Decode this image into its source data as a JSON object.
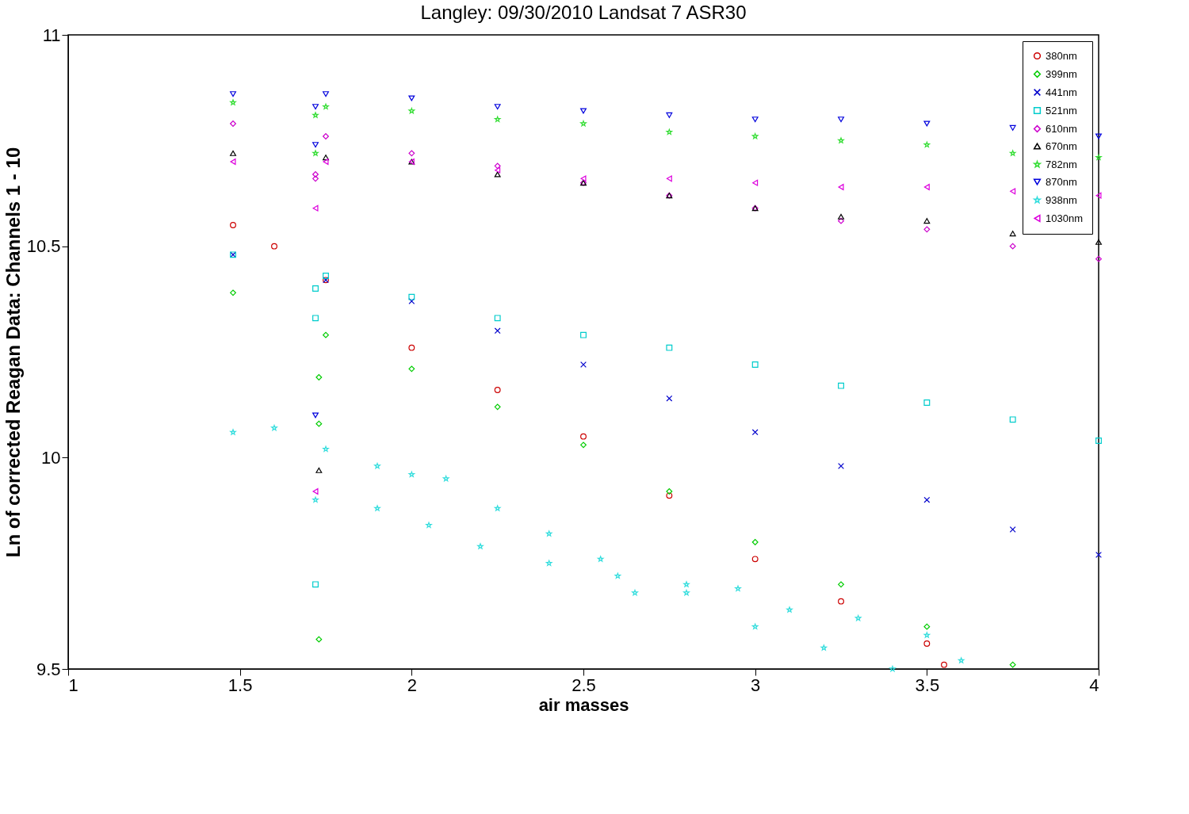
{
  "chart_data": {
    "type": "scatter",
    "title": "Langley: 09/30/2010 Landsat 7 ASR30",
    "xlabel": "air masses",
    "ylabel": "Ln of corrected Reagan Data: Channels 1 - 10",
    "xlim": [
      1,
      4
    ],
    "ylim": [
      9.5,
      11
    ],
    "xticks": [
      1,
      1.5,
      2,
      2.5,
      3,
      3.5,
      4
    ],
    "yticks": [
      9.5,
      10,
      10.5,
      11
    ],
    "grid": false,
    "legend": "top right",
    "series": [
      {
        "name": "380nm",
        "color": "#cc0000",
        "marker": "circle",
        "x": [
          1.48,
          1.6,
          1.75,
          2.0,
          2.25,
          2.5,
          2.75,
          3.0,
          3.25,
          3.5,
          3.55
        ],
        "values": [
          10.55,
          10.5,
          10.42,
          10.26,
          10.16,
          10.05,
          9.91,
          9.76,
          9.66,
          9.56,
          9.51
        ]
      },
      {
        "name": "399nm",
        "color": "#00cc00",
        "marker": "diamond",
        "x": [
          1.48,
          1.75,
          2.0,
          2.25,
          2.5,
          2.75,
          3.0,
          3.25,
          3.5,
          3.75,
          1.73,
          1.73,
          1.73
        ],
        "values": [
          10.39,
          10.29,
          10.21,
          10.12,
          10.03,
          9.92,
          9.8,
          9.7,
          9.6,
          9.51,
          9.57,
          10.19,
          10.08
        ]
      },
      {
        "name": "441nm",
        "color": "#0000cc",
        "marker": "cross",
        "x": [
          1.48,
          1.75,
          2.0,
          2.25,
          2.5,
          2.75,
          3.0,
          3.25,
          3.5,
          3.75,
          4.0
        ],
        "values": [
          10.48,
          10.42,
          10.37,
          10.3,
          10.22,
          10.14,
          10.06,
          9.98,
          9.9,
          9.83,
          9.77
        ]
      },
      {
        "name": "521nm",
        "color": "#00cccc",
        "marker": "square",
        "x": [
          1.48,
          1.75,
          2.0,
          2.25,
          2.5,
          2.75,
          3.0,
          3.25,
          3.5,
          3.75,
          4.0,
          1.72,
          1.72,
          1.72
        ],
        "values": [
          10.48,
          10.43,
          10.38,
          10.33,
          10.29,
          10.26,
          10.22,
          10.17,
          10.13,
          10.09,
          10.04,
          10.4,
          10.33,
          9.7
        ]
      },
      {
        "name": "610nm",
        "color": "#cc00cc",
        "marker": "diamond",
        "x": [
          1.48,
          1.75,
          2.0,
          2.25,
          2.5,
          2.75,
          3.0,
          3.25,
          3.5,
          3.75,
          4.0,
          1.72,
          1.72
        ],
        "values": [
          10.79,
          10.76,
          10.72,
          10.69,
          10.65,
          10.62,
          10.59,
          10.56,
          10.54,
          10.5,
          10.47,
          10.66,
          10.67
        ]
      },
      {
        "name": "670nm",
        "color": "#000000",
        "marker": "triangle",
        "x": [
          1.48,
          1.75,
          2.0,
          2.25,
          2.5,
          2.75,
          3.0,
          3.25,
          3.5,
          3.75,
          4.0,
          1.73
        ],
        "values": [
          10.72,
          10.71,
          10.7,
          10.67,
          10.65,
          10.62,
          10.59,
          10.57,
          10.56,
          10.53,
          10.51,
          9.97
        ]
      },
      {
        "name": "782nm",
        "color": "#33dd33",
        "marker": "star",
        "x": [
          1.48,
          1.75,
          2.0,
          2.25,
          2.5,
          2.75,
          3.0,
          3.25,
          3.5,
          3.75,
          4.0,
          1.72,
          1.72
        ],
        "values": [
          10.84,
          10.83,
          10.82,
          10.8,
          10.79,
          10.77,
          10.76,
          10.75,
          10.74,
          10.72,
          10.71,
          10.81,
          10.72
        ]
      },
      {
        "name": "870nm",
        "color": "#0000dd",
        "marker": "triangle-down",
        "x": [
          1.48,
          1.75,
          2.0,
          2.25,
          2.5,
          2.75,
          3.0,
          3.25,
          3.5,
          3.75,
          4.0,
          1.72,
          1.72,
          1.72
        ],
        "values": [
          10.86,
          10.86,
          10.85,
          10.83,
          10.82,
          10.81,
          10.8,
          10.8,
          10.79,
          10.78,
          10.76,
          10.83,
          10.74,
          10.1
        ]
      },
      {
        "name": "938nm",
        "color": "#33dddd",
        "marker": "star",
        "x": [
          1.48,
          1.6,
          1.75,
          1.9,
          2.0,
          2.1,
          2.25,
          2.4,
          2.55,
          2.65,
          2.8,
          2.95,
          3.1,
          3.3,
          3.5,
          3.6,
          1.9,
          2.05,
          2.2,
          2.4,
          2.6,
          2.8,
          3.0,
          3.2,
          3.4,
          1.72
        ],
        "values": [
          10.06,
          10.07,
          10.02,
          9.98,
          9.96,
          9.95,
          9.88,
          9.82,
          9.76,
          9.68,
          9.68,
          9.69,
          9.64,
          9.62,
          9.58,
          9.52,
          9.88,
          9.84,
          9.79,
          9.75,
          9.72,
          9.7,
          9.6,
          9.55,
          9.5,
          9.9
        ]
      },
      {
        "name": "1030nm",
        "color": "#dd00dd",
        "marker": "triangle-left",
        "x": [
          1.48,
          1.75,
          2.0,
          2.25,
          2.5,
          2.75,
          3.0,
          3.25,
          3.5,
          3.75,
          4.0,
          1.72,
          1.72
        ],
        "values": [
          10.7,
          10.7,
          10.7,
          10.68,
          10.66,
          10.66,
          10.65,
          10.64,
          10.64,
          10.63,
          10.62,
          9.92,
          10.59
        ]
      }
    ]
  }
}
